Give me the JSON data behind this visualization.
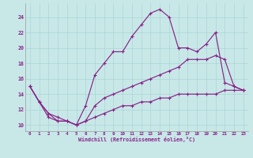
{
  "xlabel": "Windchill (Refroidissement éolien,°C)",
  "background_color": "#c8e8e8",
  "grid_color": "#aad4d4",
  "line_color": "#882288",
  "xlim": [
    -0.5,
    23.5
  ],
  "ylim": [
    9.2,
    25.8
  ],
  "yticks": [
    10,
    12,
    14,
    16,
    18,
    20,
    22,
    24
  ],
  "xticks": [
    0,
    1,
    2,
    3,
    4,
    5,
    6,
    7,
    8,
    9,
    10,
    11,
    12,
    13,
    14,
    15,
    16,
    17,
    18,
    19,
    20,
    21,
    22,
    23
  ],
  "s1_x": [
    0,
    1,
    2,
    3,
    4,
    5,
    6,
    7,
    8,
    9,
    10,
    11,
    12,
    13,
    14,
    15,
    16,
    17,
    18,
    19,
    20,
    21,
    22,
    23
  ],
  "s1_y": [
    15,
    13,
    11,
    10.5,
    10.5,
    10,
    12.5,
    16.5,
    18,
    19.5,
    19.5,
    21.5,
    23,
    24.5,
    25,
    24,
    20,
    20,
    19.5,
    20.5,
    22,
    15.5,
    15,
    14.5
  ],
  "s2_x": [
    0,
    1,
    2,
    3,
    4,
    5,
    6,
    7,
    8,
    9,
    10,
    11,
    12,
    13,
    14,
    15,
    16,
    17,
    18,
    19,
    20,
    21,
    22,
    23
  ],
  "s2_y": [
    15,
    13,
    11.5,
    11,
    10.5,
    10,
    10.5,
    12.5,
    13.5,
    14,
    14.5,
    15,
    15.5,
    16,
    16.5,
    17,
    17.5,
    18.5,
    18.5,
    18.5,
    19,
    18.5,
    15,
    14.5
  ],
  "s3_x": [
    0,
    1,
    2,
    3,
    4,
    5,
    6,
    7,
    8,
    9,
    10,
    11,
    12,
    13,
    14,
    15,
    16,
    17,
    18,
    19,
    20,
    21,
    22,
    23
  ],
  "s3_y": [
    15,
    13,
    11.5,
    10.5,
    10.5,
    10,
    10.5,
    11,
    11.5,
    12,
    12.5,
    12.5,
    13,
    13,
    13.5,
    13.5,
    14,
    14,
    14,
    14,
    14,
    14.5,
    14.5,
    14.5
  ]
}
